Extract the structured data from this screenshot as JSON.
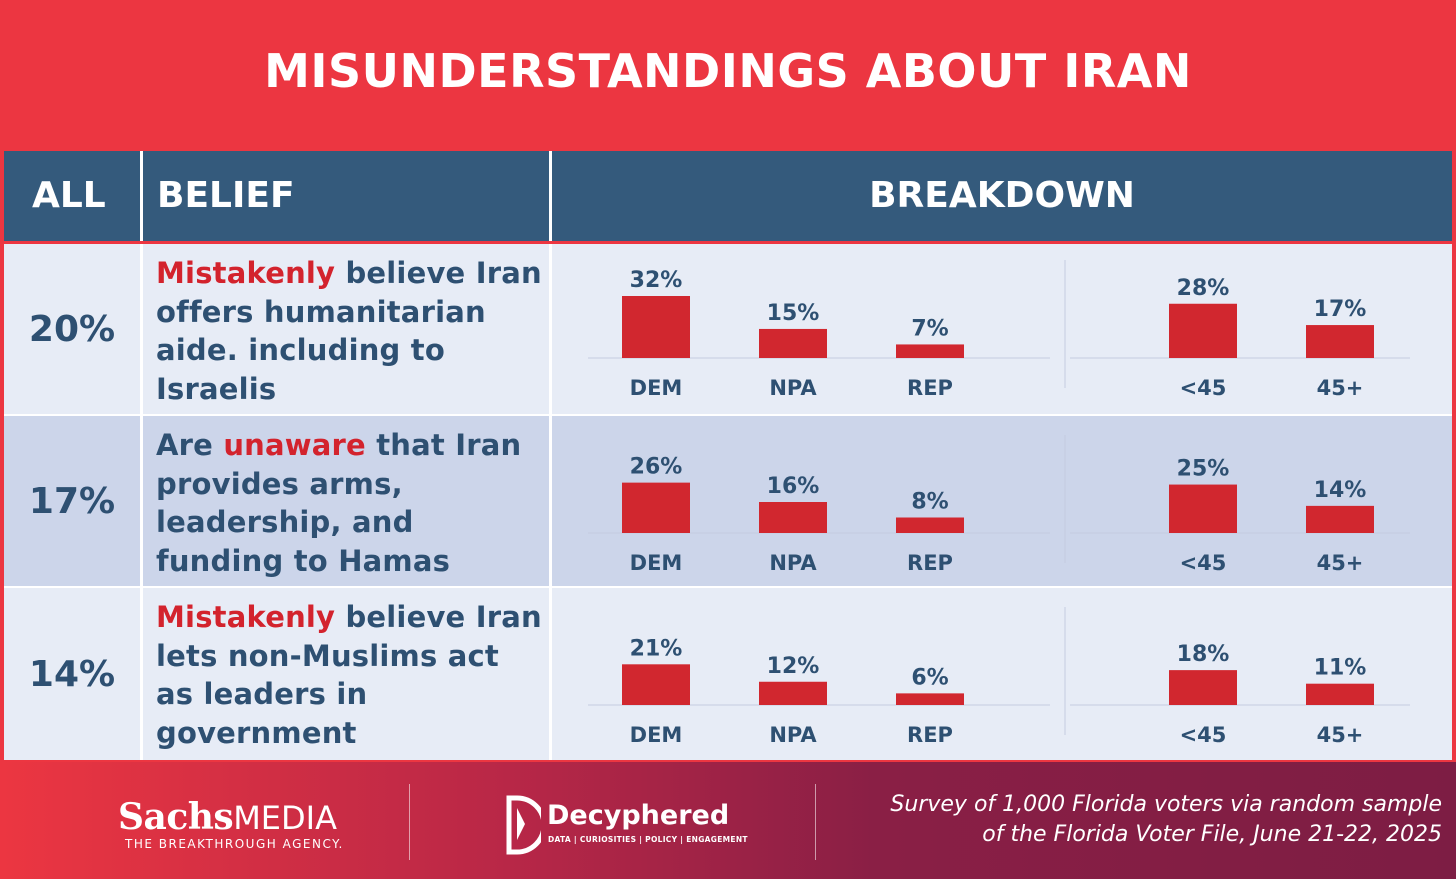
{
  "title": "MISUNDERSTANDINGS ABOUT IRAN",
  "header": {
    "all": "ALL",
    "belief": "BELIEF",
    "breakdown": "BREAKDOWN"
  },
  "rows": [
    {
      "all": "20%",
      "belief_pre": "",
      "belief_hl": "Mistakenly",
      "belief_post": " believe Iran offers humanitarian aide. including to Israelis"
    },
    {
      "all": "17%",
      "belief_pre": "Are ",
      "belief_hl": "unaware",
      "belief_post": " that Iran provides arms, leadership, and funding to Hamas"
    },
    {
      "all": "14%",
      "belief_pre": "",
      "belief_hl": "Mistakenly",
      "belief_post": " believe Iran lets non-Muslims act as leaders in government"
    }
  ],
  "footer": {
    "sachs_main": "Sachs",
    "sachs_media": "MEDIA",
    "sachs_tag": "THE BREAKTHROUGH AGENCY.",
    "decyphered_name": "Decyphered",
    "decyphered_tag": "DATA | CURIOSITIES | POLICY | ENGAGEMENT",
    "survey_line1": "Survey of 1,000 Florida voters via random sample",
    "survey_line2": "of the Florida Voter File, June 21-22, 2025"
  },
  "colors": {
    "accent_red": "#ec3641",
    "navy": "#345a7c",
    "bar": "#d1272f",
    "text": "#2e5072"
  },
  "chart_data": [
    {
      "type": "bar",
      "title": "Mistakenly believe Iran offers humanitarian aide. including to Israelis",
      "groups": [
        {
          "name": "party",
          "categories": [
            "DEM",
            "NPA",
            "REP"
          ],
          "values": [
            32,
            15,
            7
          ],
          "labels": [
            "32%",
            "15%",
            "7%"
          ]
        },
        {
          "name": "age",
          "categories": [
            "<45",
            "45+"
          ],
          "values": [
            28,
            17
          ],
          "labels": [
            "28%",
            "17%"
          ]
        }
      ],
      "ylim": [
        0,
        32
      ]
    },
    {
      "type": "bar",
      "title": "Are unaware that Iran provides arms, leadership, and funding to Hamas",
      "groups": [
        {
          "name": "party",
          "categories": [
            "DEM",
            "NPA",
            "REP"
          ],
          "values": [
            26,
            16,
            8
          ],
          "labels": [
            "26%",
            "16%",
            "8%"
          ]
        },
        {
          "name": "age",
          "categories": [
            "<45",
            "45+"
          ],
          "values": [
            25,
            14
          ],
          "labels": [
            "25%",
            "14%"
          ]
        }
      ],
      "ylim": [
        0,
        26
      ]
    },
    {
      "type": "bar",
      "title": "Mistakenly believe Iran lets non-Muslims act as leaders in government",
      "groups": [
        {
          "name": "party",
          "categories": [
            "DEM",
            "NPA",
            "REP"
          ],
          "values": [
            21,
            12,
            6
          ],
          "labels": [
            "21%",
            "12%",
            "6%"
          ]
        },
        {
          "name": "age",
          "categories": [
            "<45",
            "45+"
          ],
          "values": [
            18,
            11
          ],
          "labels": [
            "18%",
            "11%"
          ]
        }
      ],
      "ylim": [
        0,
        21
      ]
    }
  ]
}
